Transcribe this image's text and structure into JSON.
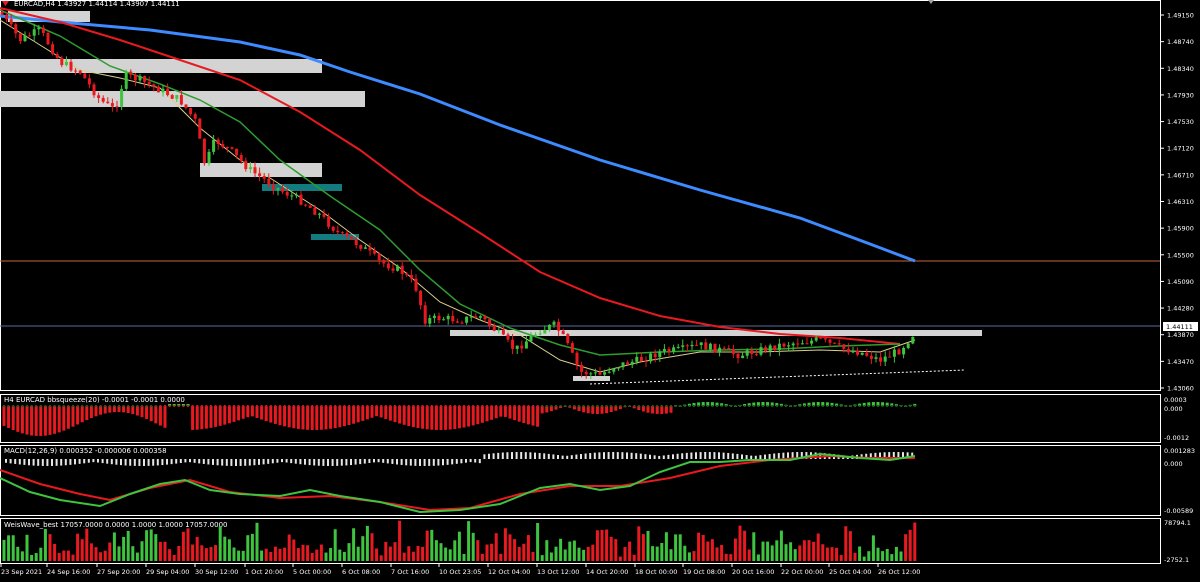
{
  "main_panel": {
    "header": "EURCAD,H4  1.43927 1.44114 1.43907 1.44111",
    "price_ticks": [
      "1.49150",
      "1.48740",
      "1.48340",
      "1.47930",
      "1.47530",
      "1.47120",
      "1.46710",
      "1.46310",
      "1.45900",
      "1.45500",
      "1.45090",
      "1.44280",
      "1.43870",
      "1.43470",
      "1.43060"
    ],
    "current_price": "1.44111"
  },
  "bbsqueeze_panel": {
    "label": "H4 EURCAD bbsqueeze(20) -0.0001 -0.0001 0.0000",
    "ticks": [
      "0.0003",
      "0.000",
      "-0.0012"
    ]
  },
  "macd_panel": {
    "label": "MACD(12,26,9) 0.000352 -0.000006 0.000358",
    "ticks": [
      "0.001283",
      "0.000",
      "-0.00589"
    ]
  },
  "weis_panel": {
    "label": "WeisWave_best 17057.0000 0.0000 1.0000 1.0000 17057.0000",
    "ticks": [
      "78794.1",
      "-2752.1"
    ]
  },
  "time_axis": [
    "23 Sep 2021",
    "24 Sep 16:00",
    "27 Sep 20:00",
    "29 Sep 04:00",
    "30 Sep 12:00",
    "1 Oct 20:00",
    "5 Oct 00:00",
    "6 Oct 08:00",
    "7 Oct 16:00",
    "10 Oct 23:05",
    "12 Oct 04:00",
    "13 Oct 12:00",
    "14 Oct 20:00",
    "18 Oct 00:00",
    "19 Oct 08:00",
    "20 Oct 16:00",
    "22 Oct 00:00",
    "25 Oct 04:00",
    "26 Oct 12:00"
  ],
  "colors": {
    "bull": "#3fc43f",
    "bear": "#e8191f",
    "ma_blue": "#3d8bff",
    "ma_red": "#e8191f",
    "ma_green": "#2e9d2e",
    "ma_yellow": "#d8d08a",
    "zone_grey": "#d3d3d3",
    "zone_teal": "#137a80",
    "hline_orange": "#c8643c",
    "hline_blue": "#5b6b9e"
  }
}
